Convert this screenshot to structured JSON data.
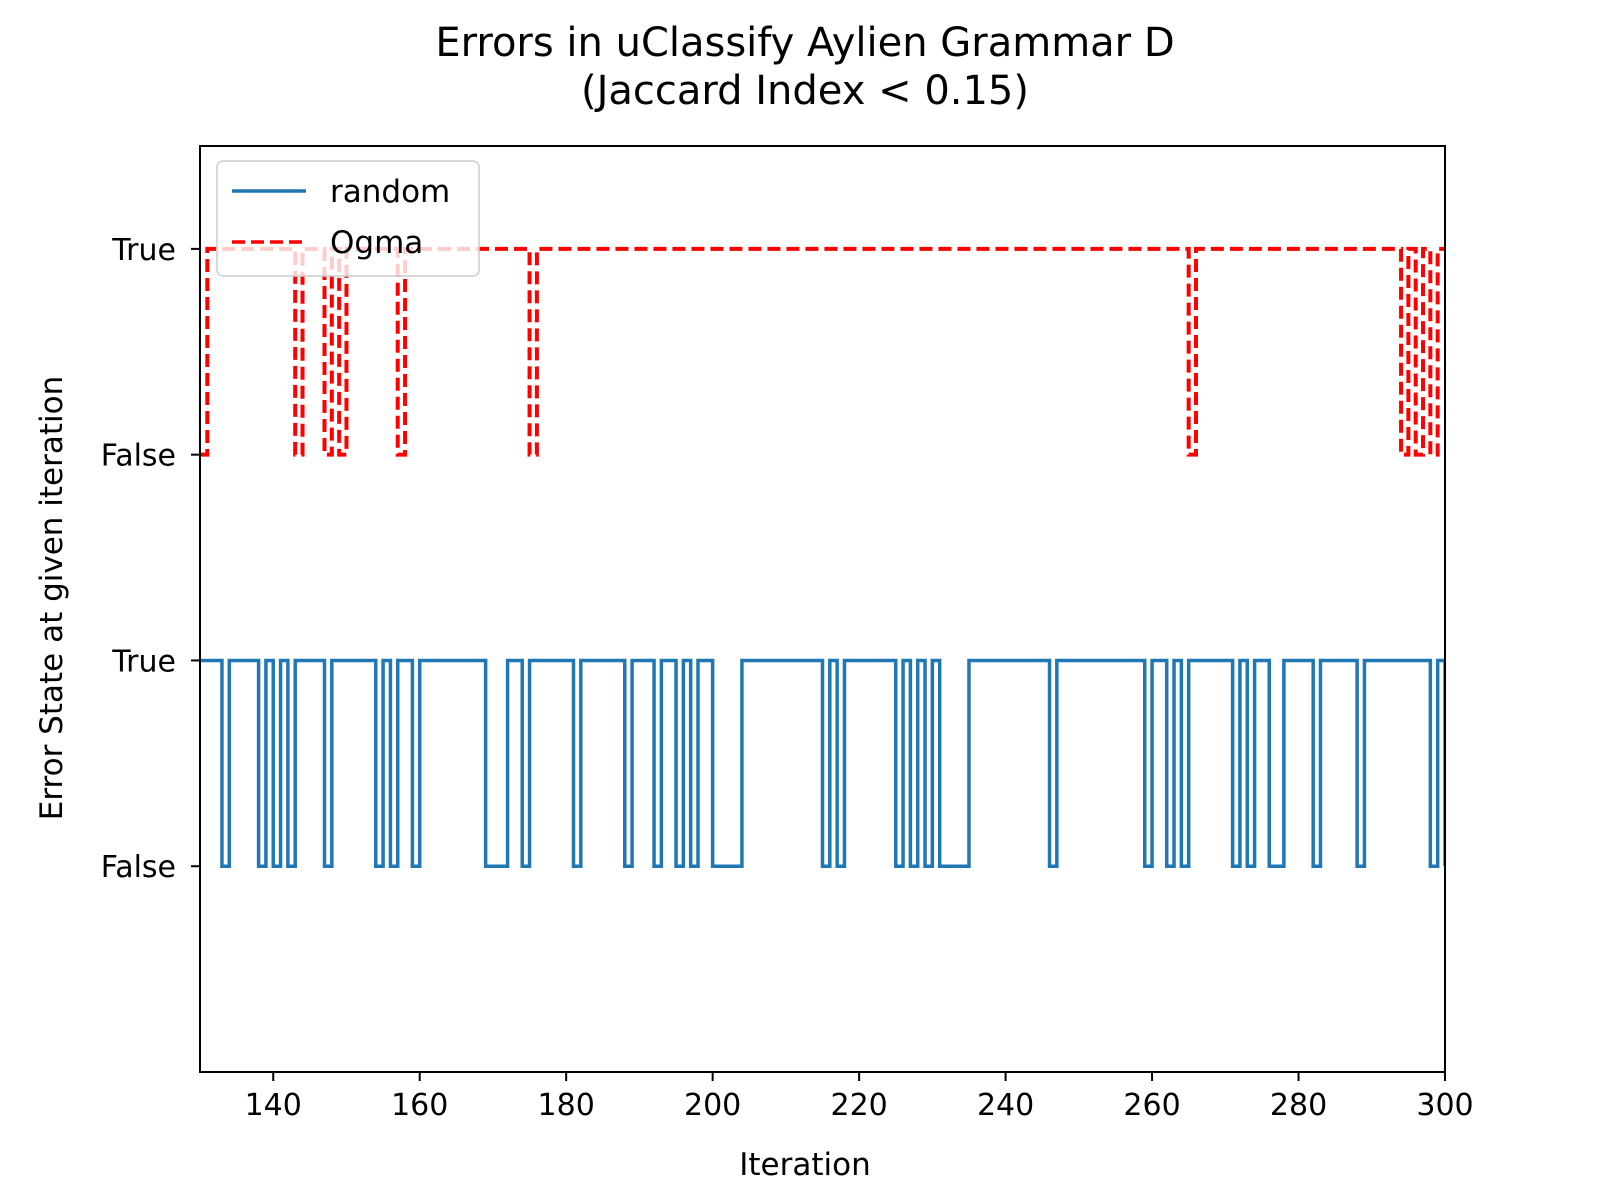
{
  "chart_data": {
    "type": "line",
    "drawstyle": "steps-post",
    "title": "Errors in uClassify Aylien Grammar D",
    "subtitle": "(Jaccard Index < 0.15)",
    "xlabel": "Iteration",
    "ylabel": "Error State at given iteration",
    "xlim": [
      130,
      300
    ],
    "ylim": [
      -1,
      3.5
    ],
    "xticks": [
      140,
      160,
      180,
      200,
      220,
      240,
      260,
      280,
      300
    ],
    "yticks": [
      {
        "value": 0,
        "label": "False"
      },
      {
        "value": 1,
        "label": "True"
      },
      {
        "value": 2,
        "label": "False"
      },
      {
        "value": 3,
        "label": "True"
      }
    ],
    "legend": {
      "placement": "top-left"
    },
    "series": [
      {
        "name": "random",
        "color": "#1f77b4",
        "style": "solid",
        "offset": 0,
        "x": [
          130,
          133,
          134,
          138,
          139,
          140,
          141,
          142,
          143,
          147,
          148,
          154,
          155,
          156,
          157,
          159,
          160,
          169,
          172,
          174,
          175,
          181,
          182,
          188,
          189,
          192,
          193,
          195,
          196,
          197,
          198,
          200,
          202,
          204,
          215,
          216,
          217,
          218,
          225,
          226,
          227,
          228,
          229,
          230,
          231,
          233,
          235,
          236,
          246,
          247,
          259,
          260,
          262,
          263,
          264,
          265,
          271,
          272,
          273,
          274,
          276,
          278,
          282,
          283,
          288,
          289,
          298,
          299,
          300
        ],
        "values": [
          1,
          0,
          1,
          0,
          1,
          0,
          1,
          0,
          1,
          0,
          1,
          0,
          1,
          0,
          1,
          0,
          1,
          0,
          1,
          0,
          1,
          0,
          1,
          0,
          1,
          0,
          1,
          0,
          1,
          0,
          1,
          0,
          0,
          1,
          0,
          1,
          0,
          1,
          0,
          1,
          0,
          1,
          0,
          1,
          0,
          0,
          1,
          1,
          0,
          1,
          0,
          1,
          0,
          1,
          0,
          1,
          0,
          1,
          0,
          1,
          0,
          1,
          0,
          1,
          0,
          1,
          0,
          1,
          0
        ]
      },
      {
        "name": "Ogma",
        "color": "#ff0000",
        "style": "dashed",
        "offset": 2,
        "x": [
          130,
          131,
          143,
          144,
          147,
          148,
          149,
          150,
          157,
          158,
          175,
          176,
          265,
          266,
          294,
          295,
          296,
          297,
          298,
          299,
          300
        ],
        "values": [
          0,
          1,
          0,
          1,
          0,
          1,
          0,
          1,
          0,
          1,
          0,
          1,
          0,
          1,
          0,
          1,
          0,
          1,
          0,
          1,
          1
        ]
      }
    ]
  }
}
